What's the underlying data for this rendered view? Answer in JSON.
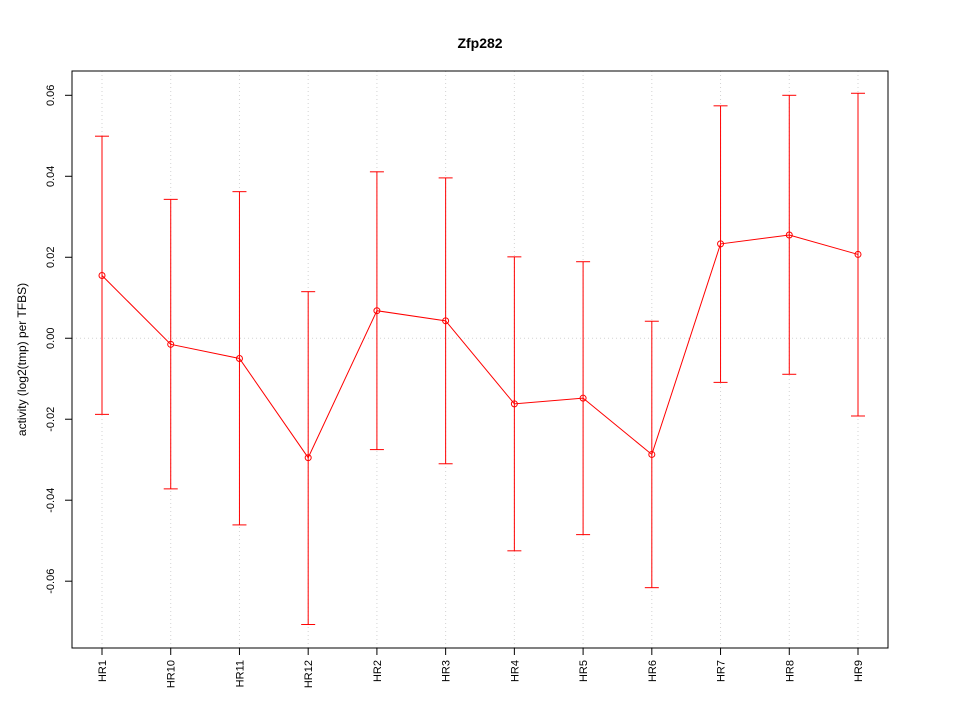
{
  "chart_data": {
    "type": "line",
    "title": "Zfp282",
    "xlabel": "",
    "ylabel": "activity (log2(tmp) per TFBS)",
    "categories": [
      "HR1",
      "HR10",
      "HR11",
      "HR12",
      "HR2",
      "HR3",
      "HR4",
      "HR5",
      "HR6",
      "HR7",
      "HR8",
      "HR9"
    ],
    "series": [
      {
        "values": [
          0.0155,
          -0.0015,
          -0.005,
          -0.0295,
          0.0068,
          0.0043,
          -0.0162,
          -0.0148,
          -0.0287,
          0.0233,
          0.0255,
          0.0207
        ],
        "upper": [
          0.0499,
          0.0343,
          0.0362,
          0.0115,
          0.0411,
          0.0396,
          0.0201,
          0.0189,
          0.0042,
          0.0574,
          0.06,
          0.0605
        ],
        "lower": [
          -0.0188,
          -0.0372,
          -0.0461,
          -0.0707,
          -0.0275,
          -0.031,
          -0.0525,
          -0.0485,
          -0.0616,
          -0.0109,
          -0.0089,
          -0.0192
        ]
      }
    ],
    "yticks": [
      "-0.06",
      "-0.04",
      "-0.02",
      "0.00",
      "0.02",
      "0.04",
      "0.06"
    ],
    "ylim": [
      -0.0765,
      0.066
    ],
    "grid": true,
    "colors": {
      "series": "#ff0000",
      "grid": "#d3d3d3",
      "axis": "#000000"
    }
  }
}
